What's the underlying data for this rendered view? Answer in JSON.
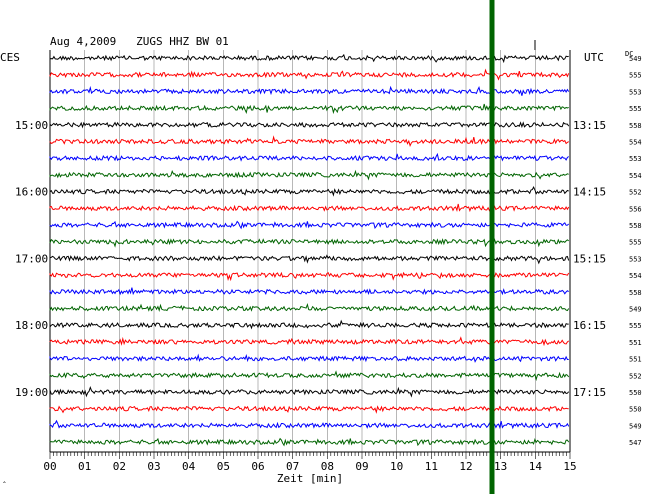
{
  "chart_data": {
    "type": "line",
    "title": "Aug 4,2009   ZUGS HHZ BW 01",
    "left_header": "CES",
    "right_header": "UTC",
    "dc_header": "DC",
    "xlabel": "Zeit [min]",
    "xlim": [
      0,
      15
    ],
    "x_ticks": [
      "00",
      "01",
      "02",
      "03",
      "04",
      "05",
      "06",
      "07",
      "08",
      "09",
      "10",
      "11",
      "12",
      "13",
      "14",
      "15"
    ],
    "left_time_labels": [
      {
        "trace": 4,
        "label": "15:00"
      },
      {
        "trace": 8,
        "label": "16:00"
      },
      {
        "trace": 12,
        "label": "17:00"
      },
      {
        "trace": 16,
        "label": "18:00"
      },
      {
        "trace": 20,
        "label": "19:00"
      }
    ],
    "right_time_labels": [
      {
        "trace": 4,
        "label": "13:15"
      },
      {
        "trace": 8,
        "label": "14:15"
      },
      {
        "trace": 12,
        "label": "15:15"
      },
      {
        "trace": 16,
        "label": "16:15"
      },
      {
        "trace": 20,
        "label": "17:15"
      }
    ],
    "trace_colors": [
      "#000000",
      "#ff0000",
      "#0000ff",
      "#006400"
    ],
    "dc_values": [
      "549",
      "555",
      "553",
      "555",
      "558",
      "554",
      "553",
      "554",
      "552",
      "556",
      "558",
      "555",
      "553",
      "554",
      "558",
      "549",
      "555",
      "551",
      "551",
      "552",
      "550",
      "550",
      "549",
      "547"
    ],
    "event_marker": {
      "x_min": 12.75,
      "color": "#006400"
    },
    "corner_mark": "ˆ"
  }
}
